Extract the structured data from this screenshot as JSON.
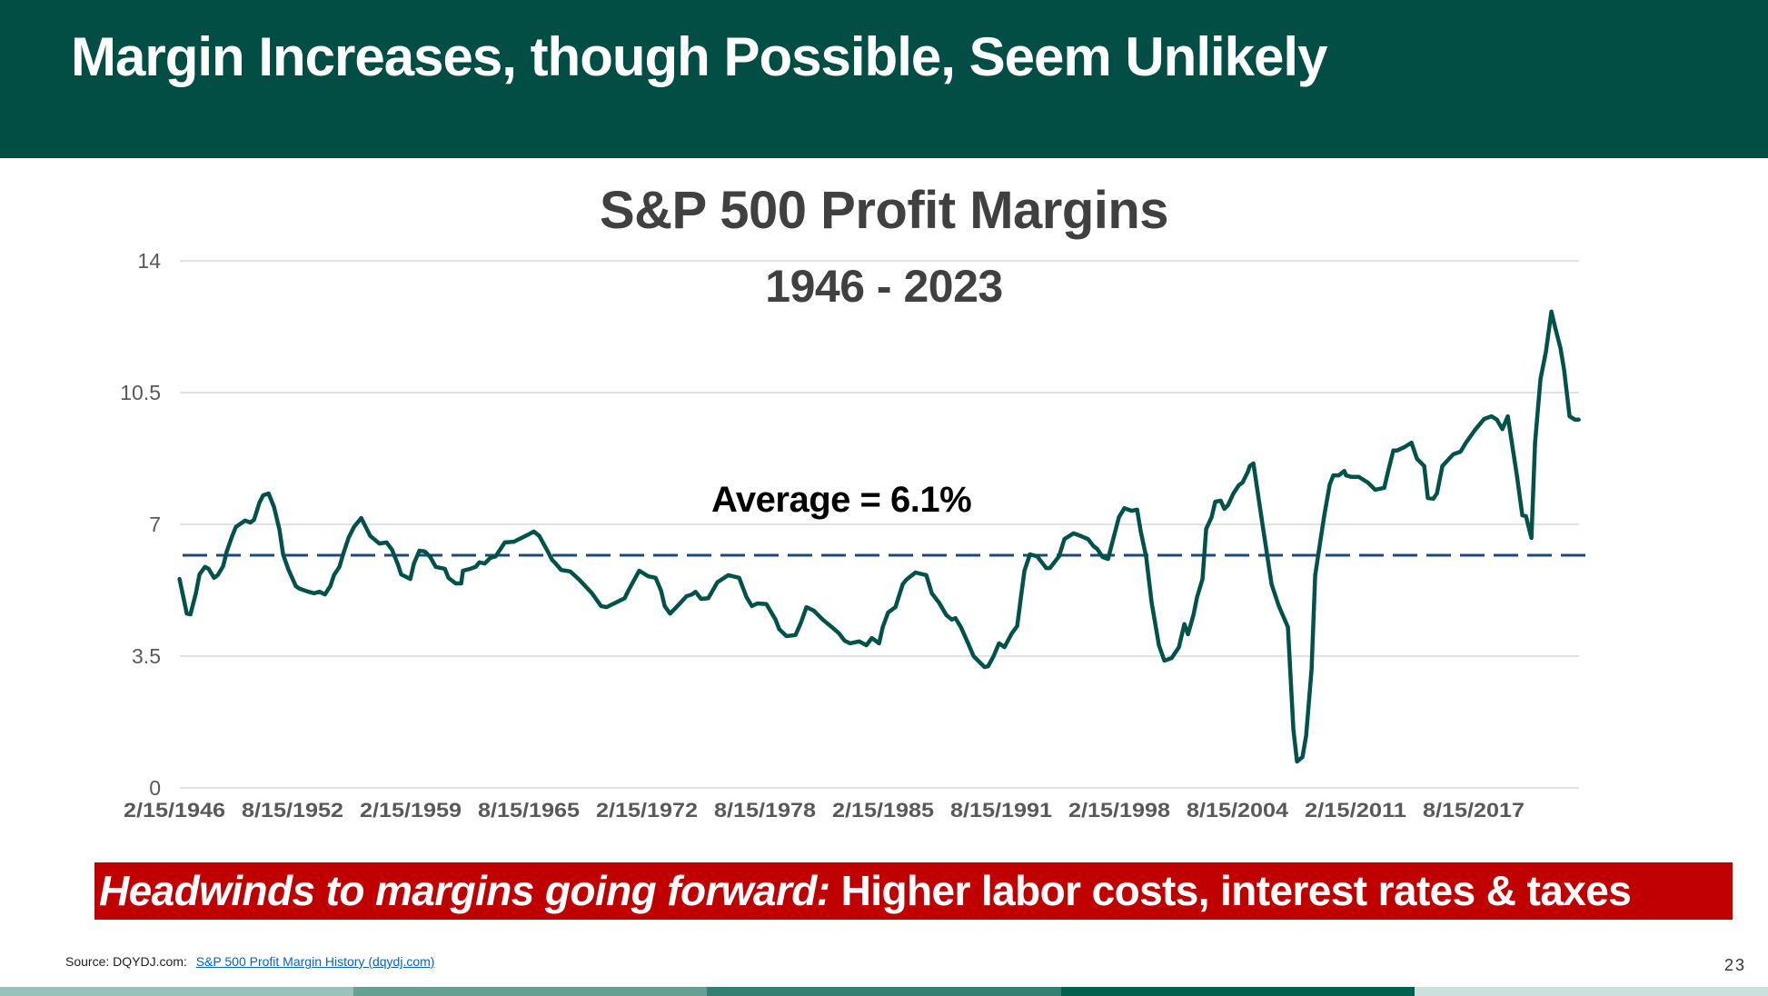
{
  "slide": {
    "title": "Margin Increases, though Possible, Seem Unlikely",
    "banner_lead": "Headwinds to margins going forward:",
    "banner_rest": " Higher labor costs, interest rates & taxes",
    "source_label": "Source: DQYDJ.com:",
    "source_link": "S&P 500 Profit Margin History (dqydj.com)",
    "page_number": "23",
    "colors": {
      "header_bg": "#024E45",
      "banner_bg": "#C00000",
      "line": "#03524A",
      "average_line": "#1F497D",
      "footer": [
        "#99C2BC",
        "#66A094",
        "#337F71",
        "#02604F",
        "#CCE0DD"
      ]
    }
  },
  "chart_data": {
    "type": "line",
    "title": "S&P 500 Profit Margins",
    "subtitle": "1946 - 2023",
    "xlabel": "",
    "ylabel": "",
    "ylim": [
      0,
      14
    ],
    "xlim": [
      1946.12,
      2023.12
    ],
    "yticks": [
      "0",
      "3.5",
      "7",
      "10.5",
      "14"
    ],
    "ytick_values": [
      0,
      3.5,
      7,
      10.5,
      14
    ],
    "xtick_labels": [
      "2/15/1946",
      "8/15/1952",
      "2/15/1959",
      "8/15/1965",
      "2/15/1972",
      "8/15/1978",
      "2/15/1985",
      "8/15/1991",
      "2/15/1998",
      "8/15/2004",
      "2/15/2011",
      "8/15/2017"
    ],
    "xtick_values": [
      1946.12,
      1952.62,
      1959.12,
      1965.62,
      1972.12,
      1978.62,
      1985.12,
      1991.62,
      1998.12,
      2004.62,
      2011.12,
      2017.62
    ],
    "grid": true,
    "average": {
      "value": 6.1,
      "label": "Average = 6.1%",
      "style": "dashed"
    },
    "series": [
      {
        "name": "S&P 500 Profit Margin (%)",
        "x": [
          1946.1,
          1946.5,
          1946.7,
          1947.0,
          1947.2,
          1947.5,
          1947.7,
          1948.0,
          1948.2,
          1948.5,
          1948.7,
          1949.0,
          1949.2,
          1949.7,
          1950.0,
          1950.2,
          1950.5,
          1950.7,
          1951.0,
          1951.3,
          1951.6,
          1951.8,
          1952.1,
          1952.5,
          1952.7,
          1953.2,
          1953.5,
          1953.8,
          1954.1,
          1954.4,
          1954.6,
          1954.9,
          1955.1,
          1955.4,
          1955.7,
          1956.1,
          1956.4,
          1956.6,
          1957.1,
          1957.5,
          1957.8,
          1958.1,
          1958.3,
          1958.8,
          1959.0,
          1959.3,
          1959.6,
          1959.9,
          1960.2,
          1960.7,
          1960.9,
          1961.3,
          1961.6,
          1961.7,
          1962.1,
          1962.4,
          1962.6,
          1962.9,
          1963.2,
          1963.5,
          1964.0,
          1964.5,
          1965.0,
          1965.3,
          1965.6,
          1965.9,
          1966.4,
          1966.6,
          1966.8,
          1967.1,
          1967.6,
          1968.1,
          1968.8,
          1969.3,
          1969.6,
          1970.1,
          1970.6,
          1970.8,
          1971.4,
          1971.9,
          1972.3,
          1972.6,
          1972.8,
          1973.1,
          1973.6,
          1974.0,
          1974.3,
          1974.5,
          1974.8,
          1975.2,
          1975.7,
          1976.3,
          1976.9,
          1977.3,
          1977.6,
          1977.9,
          1978.4,
          1978.9,
          1979.1,
          1979.5,
          1980.0,
          1980.3,
          1980.6,
          1981.0,
          1981.5,
          1982.0,
          1982.4,
          1982.7,
          1983.0,
          1983.5,
          1983.9,
          1984.2,
          1984.6,
          1984.8,
          1985.1,
          1985.5,
          1985.9,
          1986.1,
          1986.6,
          1987.2,
          1987.5,
          1987.9,
          1988.3,
          1988.6,
          1988.8,
          1989.1,
          1989.5,
          1989.8,
          1990.4,
          1990.6,
          1990.9,
          1991.2,
          1991.5,
          1991.9,
          1992.2,
          1992.4,
          1992.6,
          1992.9,
          1993.3,
          1993.8,
          1994.0,
          1994.5,
          1994.8,
          1995.3,
          1995.6,
          1996.1,
          1996.4,
          1996.6,
          1996.9,
          1997.2,
          1997.5,
          1997.8,
          1998.1,
          1998.5,
          1998.8,
          1999.0,
          1999.3,
          1999.6,
          2000.0,
          2000.3,
          2000.7,
          2001.1,
          2001.4,
          2001.6,
          2001.9,
          2002.1,
          2002.4,
          2002.6,
          2002.9,
          2003.1,
          2003.4,
          2003.6,
          2003.8,
          2004.1,
          2004.4,
          2004.6,
          2004.9,
          2005.0,
          2005.2,
          2005.4,
          2005.7,
          2006.2,
          2006.6,
          2007.1,
          2007.4,
          2007.6,
          2007.9,
          2008.1,
          2008.4,
          2008.6,
          2008.9,
          2009.1,
          2009.4,
          2009.6,
          2009.9,
          2010.2,
          2010.3,
          2010.6,
          2011.0,
          2011.5,
          2011.9,
          2012.4,
          2012.6,
          2012.9,
          2013.1,
          2013.5,
          2013.9,
          2014.2,
          2014.6,
          2014.8,
          2015.1,
          2015.3,
          2015.6,
          2016.2,
          2016.6,
          2016.9,
          2017.4,
          2017.9,
          2018.3,
          2018.6,
          2018.9,
          2019.2,
          2019.7,
          2020.0,
          2020.2,
          2020.5,
          2020.7,
          2021.0,
          2021.3,
          2021.6,
          2021.8,
          2022.1,
          2022.3,
          2022.6,
          2022.9,
          2023.1
        ],
        "y": [
          5.55,
          4.63,
          4.61,
          5.17,
          5.67,
          5.87,
          5.82,
          5.58,
          5.65,
          5.89,
          6.28,
          6.69,
          6.93,
          7.1,
          7.05,
          7.12,
          7.58,
          7.77,
          7.82,
          7.46,
          6.86,
          6.2,
          5.79,
          5.36,
          5.29,
          5.21,
          5.17,
          5.21,
          5.14,
          5.36,
          5.65,
          5.87,
          6.2,
          6.64,
          6.93,
          7.17,
          6.88,
          6.69,
          6.49,
          6.52,
          6.32,
          5.96,
          5.67,
          5.55,
          5.96,
          6.3,
          6.28,
          6.13,
          5.87,
          5.82,
          5.58,
          5.43,
          5.43,
          5.77,
          5.82,
          5.87,
          5.99,
          5.96,
          6.11,
          6.15,
          6.52,
          6.54,
          6.66,
          6.73,
          6.81,
          6.69,
          6.25,
          6.06,
          5.96,
          5.79,
          5.75,
          5.53,
          5.17,
          4.83,
          4.8,
          4.92,
          5.04,
          5.24,
          5.77,
          5.62,
          5.58,
          5.24,
          4.83,
          4.63,
          4.88,
          5.09,
          5.14,
          5.21,
          5.02,
          5.04,
          5.46,
          5.65,
          5.58,
          5.07,
          4.83,
          4.9,
          4.88,
          4.47,
          4.22,
          4.03,
          4.06,
          4.39,
          4.8,
          4.71,
          4.47,
          4.27,
          4.1,
          3.91,
          3.84,
          3.89,
          3.79,
          3.98,
          3.84,
          4.27,
          4.66,
          4.8,
          5.41,
          5.53,
          5.72,
          5.65,
          5.17,
          4.92,
          4.59,
          4.47,
          4.51,
          4.27,
          3.84,
          3.5,
          3.21,
          3.23,
          3.5,
          3.84,
          3.74,
          4.1,
          4.3,
          5.04,
          5.77,
          6.2,
          6.15,
          5.84,
          5.84,
          6.15,
          6.61,
          6.76,
          6.71,
          6.61,
          6.42,
          6.35,
          6.13,
          6.08,
          6.64,
          7.19,
          7.43,
          7.36,
          7.39,
          6.81,
          6.13,
          4.92,
          3.79,
          3.38,
          3.45,
          3.74,
          4.35,
          4.08,
          4.59,
          5.07,
          5.55,
          6.88,
          7.19,
          7.6,
          7.63,
          7.41,
          7.51,
          7.82,
          8.04,
          8.11,
          8.4,
          8.55,
          8.62,
          7.97,
          7.0,
          5.41,
          4.83,
          4.27,
          1.55,
          0.7,
          0.82,
          1.38,
          3.14,
          5.65,
          6.61,
          7.24,
          8.06,
          8.3,
          8.3,
          8.42,
          8.3,
          8.26,
          8.26,
          8.11,
          7.92,
          7.97,
          8.38,
          8.96,
          8.96,
          9.05,
          9.17,
          8.74,
          8.55,
          7.7,
          7.68,
          7.82,
          8.55,
          8.86,
          8.93,
          9.17,
          9.51,
          9.8,
          9.87,
          9.78,
          9.53,
          9.87,
          8.3,
          7.24,
          7.22,
          6.64,
          9.17,
          10.86,
          11.59,
          12.65,
          12.24,
          11.68,
          11.1,
          9.87,
          9.78,
          9.78
        ]
      }
    ]
  }
}
